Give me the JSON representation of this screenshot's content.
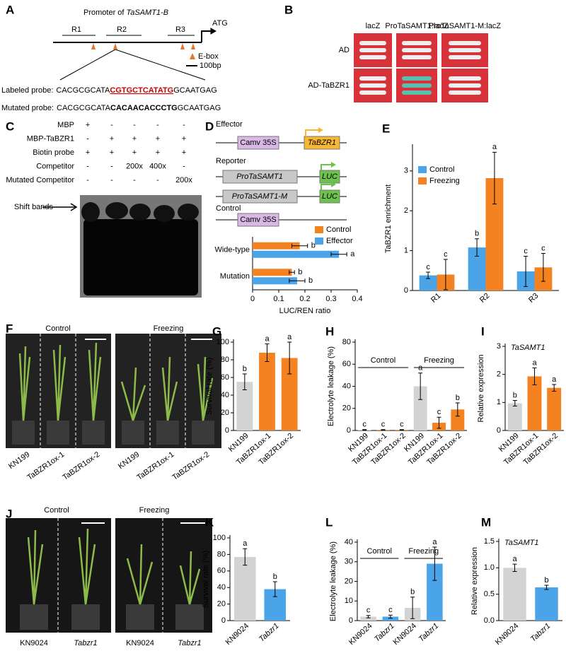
{
  "panel_a": {
    "label": "A",
    "title_prefix": "Promoter of ",
    "title_gene": "TaSAMT1-B",
    "regions": [
      "R1",
      "R2",
      "R3"
    ],
    "atg": "ATG",
    "ebox": "E-box",
    "scale": "100bp",
    "labeled_probe": {
      "name": "Labeled probe:",
      "pre": "CACGCGCATA",
      "core": "CGTGCTCATATG",
      "post": "GCAATGAG"
    },
    "mutated_probe": {
      "name": "Mutated probe:",
      "pre": "CACGCGCATA",
      "core": "CACAACACCCTG",
      "post": "GCAATGAG"
    }
  },
  "panel_b": {
    "label": "B",
    "columns": [
      "lacZ",
      "ProTaSAMT1:lacZ",
      "ProTaSAMT1-M:lacZ"
    ],
    "rows": [
      "AD",
      "AD-TaBZR1"
    ]
  },
  "panel_c": {
    "label": "C",
    "rows": [
      {
        "name": "MBP",
        "marks": [
          "+",
          "-",
          "-",
          "-",
          "-"
        ]
      },
      {
        "name": "MBP-TaBZR1",
        "marks": [
          "-",
          "+",
          "+",
          "+",
          "+"
        ]
      },
      {
        "name": "Biotin probe",
        "marks": [
          "+",
          "+",
          "+",
          "+",
          "+"
        ]
      },
      {
        "name": "Competitor",
        "marks": [
          "-",
          "-",
          "200x",
          "400x",
          "-"
        ]
      },
      {
        "name": "Mutated Competitor",
        "marks": [
          "-",
          "-",
          "-",
          "-",
          "200x"
        ]
      }
    ],
    "band": "Shift bands"
  },
  "panel_d": {
    "label": "D",
    "effector": "Effector",
    "reporter": "Reporter",
    "control": "Control",
    "promoter35s": "Camv 35S",
    "tabzr1": "TaBZR1",
    "pro": "ProTaSAMT1",
    "pro_m": "ProTaSAMT1-M",
    "luc": "LUC"
  },
  "panel_f": {
    "label": "F",
    "groups": [
      "Control",
      "Freezing"
    ],
    "plants": [
      "KN199",
      "TaBZR1ox-1",
      "TaBZR1ox-2",
      "KN199",
      "TaBZR1ox-1",
      "TaBZR1ox-2"
    ]
  },
  "panel_j": {
    "label": "J",
    "groups": [
      "Control",
      "Freezing"
    ],
    "plants": [
      "KN9024",
      "Tabzr1",
      "KN9024",
      "Tabzr1"
    ]
  },
  "chart_data": [
    {
      "type": "hbar",
      "xlabel": "LUC/REN ratio",
      "categories": [
        "Wide-type",
        "Mutation"
      ],
      "series": [
        {
          "name": "Control",
          "color": "#f58220",
          "values": [
            0.18,
            0.15
          ],
          "errors": [
            0.03,
            0.01
          ],
          "letters": [
            "b",
            "b"
          ]
        },
        {
          "name": "Effector",
          "color": "#4ba3e8",
          "values": [
            0.33,
            0.17
          ],
          "errors": [
            0.03,
            0.03
          ],
          "letters": [
            "a",
            "b"
          ]
        }
      ],
      "xlim": [
        0,
        0.4
      ],
      "xticks": [
        0,
        0.1,
        0.2,
        0.3,
        0.4
      ]
    },
    {
      "type": "bar",
      "panel": "E",
      "ylabel": "TaBZR1 enrichment",
      "categories": [
        "R1",
        "R2",
        "R3"
      ],
      "series": [
        {
          "name": "Control",
          "color": "#4ba3e8",
          "values": [
            0.38,
            1.08,
            0.48
          ],
          "errors": [
            0.08,
            0.22,
            0.38
          ],
          "letters": [
            "c",
            "b",
            "c"
          ]
        },
        {
          "name": "Freezing",
          "color": "#f58220",
          "values": [
            0.4,
            2.82,
            0.58
          ],
          "errors": [
            0.38,
            0.65,
            0.35
          ],
          "letters": [
            "c",
            "a",
            "c"
          ]
        }
      ],
      "ylim": [
        0,
        3.6
      ],
      "yticks": [
        0,
        1,
        2,
        3
      ]
    },
    {
      "type": "bar",
      "panel": "G",
      "ylabel": "Survival rate (%)",
      "categories": [
        "KN199",
        "TaBZR1ox-1",
        "TaBZR1ox-2"
      ],
      "series": [
        {
          "colors": [
            "#d3d3d3",
            "#f58220",
            "#f58220"
          ],
          "values": [
            55,
            88,
            82
          ],
          "errors": [
            9,
            10,
            18
          ],
          "letters": [
            "b",
            "a",
            "a"
          ]
        }
      ],
      "ylim": [
        0,
        100
      ],
      "yticks": [
        0,
        20,
        40,
        60,
        80,
        100
      ]
    },
    {
      "type": "bar",
      "panel": "H",
      "ylabel": "Electrolyte leakage (%)",
      "groups": [
        "Control",
        "Freezing"
      ],
      "categories": [
        "KN199",
        "TaBZR1ox-1",
        "TaBZR1ox-2",
        "KN199",
        "TaBZR1ox-1",
        "TaBZR1ox-2"
      ],
      "series": [
        {
          "colors": [
            "#d3d3d3",
            "#f58220",
            "#f58220",
            "#d3d3d3",
            "#f58220",
            "#f58220"
          ],
          "values": [
            0.5,
            0.5,
            0.5,
            40,
            7,
            19
          ],
          "errors": [
            0.3,
            0.3,
            0.3,
            12,
            5,
            6
          ],
          "letters": [
            "c",
            "c",
            "c",
            "a",
            "c",
            "b"
          ]
        }
      ],
      "ylim": [
        0,
        80
      ],
      "yticks": [
        0,
        20,
        40,
        60,
        80
      ]
    },
    {
      "type": "bar",
      "panel": "I",
      "subtitle": "TaSAMT1",
      "ylabel": "Relative expression",
      "categories": [
        "KN199",
        "TaBZR1ox-1",
        "TaBZR1ox-2"
      ],
      "series": [
        {
          "colors": [
            "#d3d3d3",
            "#f58220",
            "#f58220"
          ],
          "values": [
            0.97,
            1.93,
            1.52
          ],
          "errors": [
            0.1,
            0.3,
            0.12
          ],
          "letters": [
            "b",
            "a",
            "a"
          ]
        }
      ],
      "ylim": [
        0,
        3
      ],
      "yticks": [
        0,
        1,
        2,
        3
      ]
    },
    {
      "type": "bar",
      "panel": "K",
      "ylabel": "Survival rate (%)",
      "categories": [
        "KN9024",
        "Tabzr1"
      ],
      "label_italic": [
        false,
        true
      ],
      "series": [
        {
          "colors": [
            "#d3d3d3",
            "#4ba3e8"
          ],
          "values": [
            77,
            38
          ],
          "errors": [
            10,
            9
          ],
          "letters": [
            "a",
            "b"
          ]
        }
      ],
      "ylim": [
        0,
        100
      ],
      "yticks": [
        0,
        20,
        40,
        60,
        80,
        100
      ]
    },
    {
      "type": "bar",
      "panel": "L",
      "ylabel": "Electrolyte leakage (%)",
      "groups": [
        "Control",
        "Freezing"
      ],
      "categories": [
        "KN9024",
        "Tabzr1",
        "KN9024",
        "Tabzr1"
      ],
      "label_italic": [
        false,
        true,
        false,
        true
      ],
      "series": [
        {
          "colors": [
            "#d3d3d3",
            "#4ba3e8",
            "#d3d3d3",
            "#4ba3e8"
          ],
          "values": [
            2,
            2,
            6.5,
            29
          ],
          "errors": [
            0.6,
            0.8,
            5.5,
            8.5
          ],
          "letters": [
            "c",
            "c",
            "b",
            "a"
          ]
        }
      ],
      "ylim": [
        0,
        40
      ],
      "yticks": [
        0,
        10,
        20,
        30,
        40
      ]
    },
    {
      "type": "bar",
      "panel": "M",
      "subtitle": "TaSAMT1",
      "ylabel": "Relative expression",
      "categories": [
        "KN9024",
        "Tabzr1"
      ],
      "label_italic": [
        false,
        true
      ],
      "series": [
        {
          "colors": [
            "#d3d3d3",
            "#4ba3e8"
          ],
          "values": [
            1.0,
            0.63
          ],
          "errors": [
            0.07,
            0.04
          ],
          "letters": [
            "a",
            "b"
          ]
        }
      ],
      "ylim": [
        0,
        1.5
      ],
      "yticks": [
        {
          "value": 0,
          "label": "0.0"
        },
        {
          "value": 0.5,
          "label": "0.5"
        },
        {
          "value": 1,
          "label": "1.0"
        },
        {
          "value": 1.5,
          "label": "1.5"
        }
      ]
    }
  ]
}
